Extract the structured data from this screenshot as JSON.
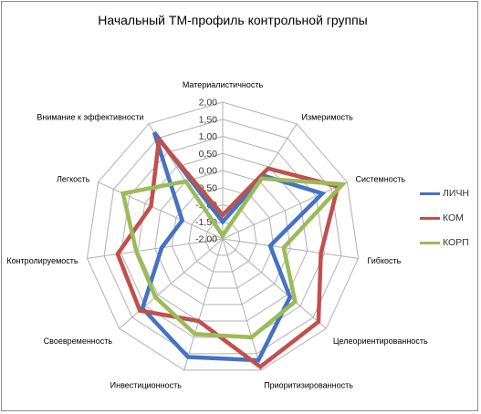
{
  "chart_data": {
    "type": "radar",
    "title": "Начальный ТМ-профиль контрольной группы",
    "categories": [
      "Материалистичность",
      "Измеримость",
      "Системность",
      "Гибкость",
      "Целеориентированность",
      "Приоритизированность",
      "Инвестиционность",
      "Своевременность",
      "Контролируемость",
      "Легкость",
      "Внимание к эффективности"
    ],
    "ticks": [
      "-2,00",
      "-1,50",
      "-1,00",
      "-0,50",
      "0,00",
      "0,50",
      "1,00",
      "1,50",
      "2,00"
    ],
    "rlim": [
      -2,
      2
    ],
    "legend_position": "right",
    "series": [
      {
        "name": "ЛИЧН",
        "color": "#4472c4",
        "values": [
          -1.5,
          0.2,
          1.2,
          -0.6,
          0.6,
          1.7,
          1.6,
          1.1,
          -0.2,
          -0.7,
          1.7
        ]
      },
      {
        "name": "КОМ",
        "color": "#c0504d",
        "values": [
          -1.3,
          0.45,
          1.7,
          0.9,
          1.7,
          1.9,
          0.5,
          1.2,
          1.1,
          0.3,
          1.45
        ]
      },
      {
        "name": "КОРП",
        "color": "#9bbb59",
        "values": [
          -1.9,
          0.1,
          1.85,
          -0.2,
          0.8,
          1.0,
          0.9,
          0.6,
          0.55,
          1.2,
          0.0
        ]
      }
    ]
  }
}
